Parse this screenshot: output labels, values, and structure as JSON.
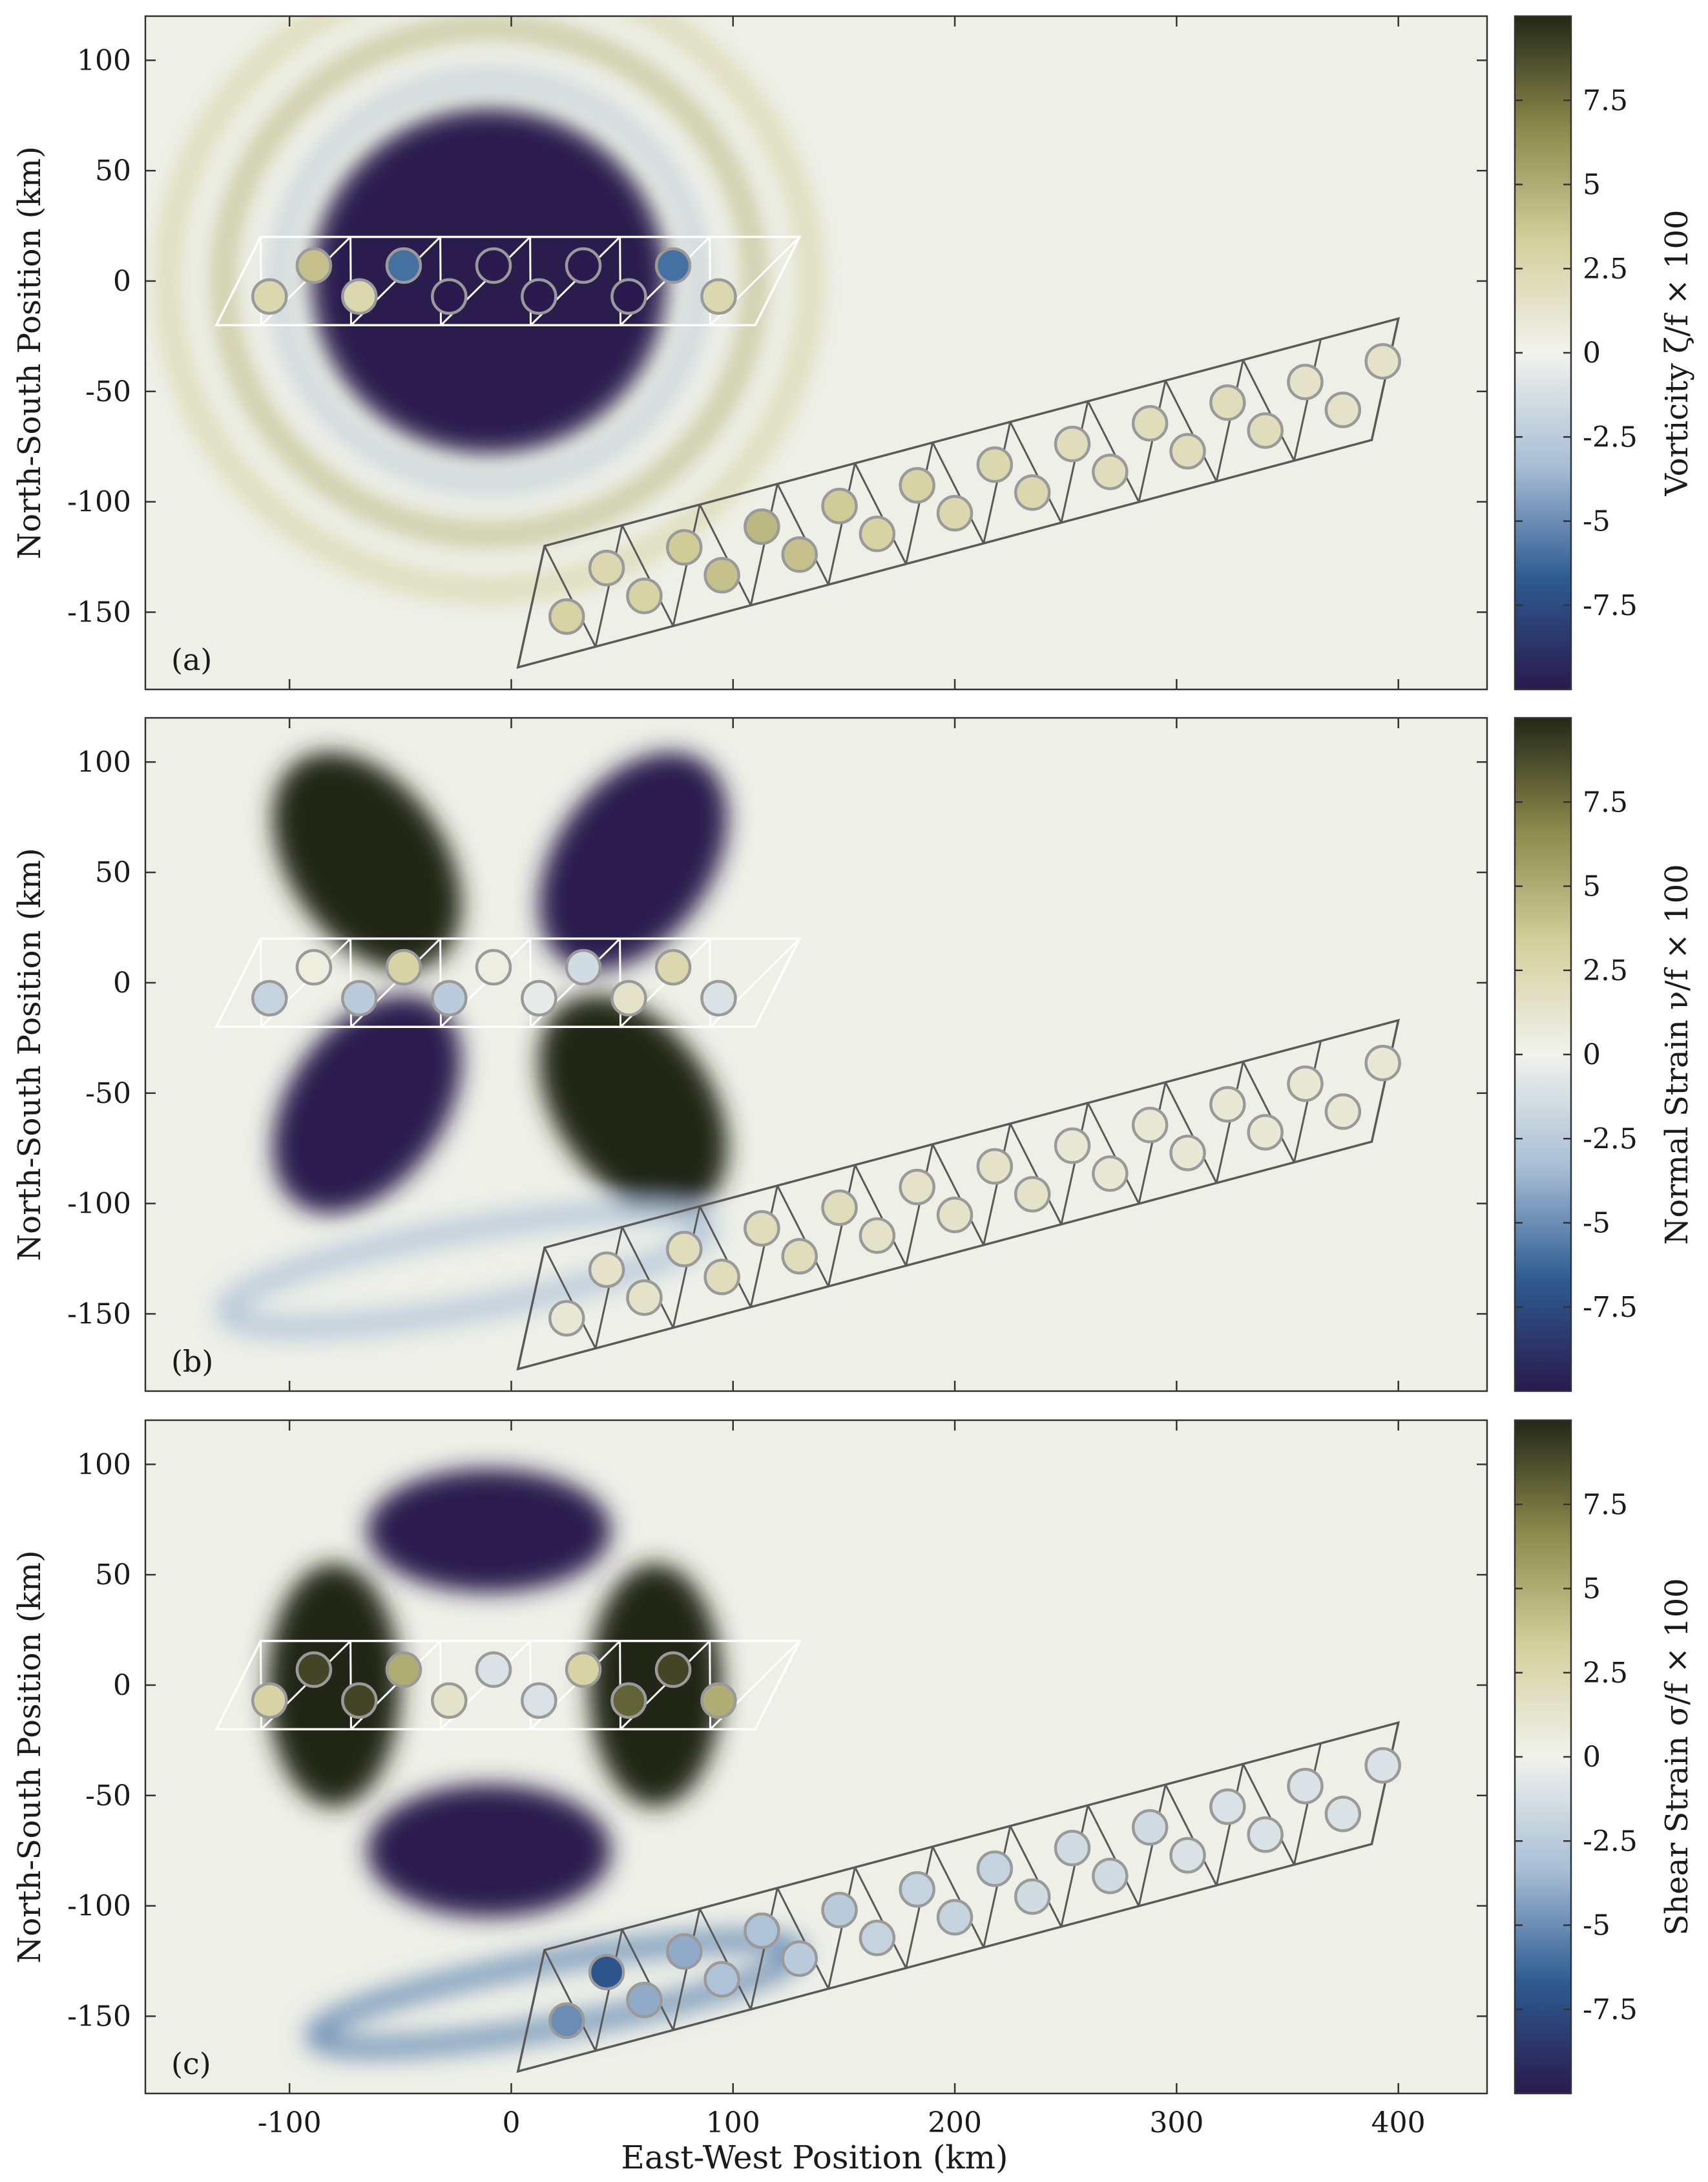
{
  "chart_data": [
    {
      "type": "heatmap",
      "panel_label": "(a)",
      "field": "vorticity",
      "colorbar_label": "Vorticity ζ/f × 100",
      "colorbar_range": [
        -10,
        10
      ],
      "colorbar_ticks": [
        "7.5",
        "5",
        "2.5",
        "0",
        "-2.5",
        "-5",
        "-7.5"
      ],
      "colorbar_tick_values": [
        7.5,
        5,
        2.5,
        0,
        -2.5,
        -5,
        -7.5
      ],
      "ylabel": "North-South Position (km)",
      "xlim": [
        -165,
        440
      ],
      "ylim": [
        -185,
        120
      ],
      "yticks": [
        "100",
        "50",
        "0",
        "-50",
        "-100",
        "-150"
      ],
      "ytick_values": [
        100,
        50,
        0,
        -50,
        -100,
        -150
      ],
      "xtick_values": [
        -100,
        0,
        100,
        200,
        300,
        400
      ],
      "array_outline": "white",
      "array_circle_values": [
        2.5,
        4,
        2.5,
        -6,
        -10,
        -10,
        -10,
        -10,
        -10,
        -6,
        2.5,
        3,
        2.5,
        3,
        3.5,
        4,
        4.5,
        4,
        3.5,
        3,
        3,
        2.5,
        2.5,
        2.5,
        2,
        2,
        2,
        2,
        2,
        2,
        1.5,
        1.5,
        1.5
      ]
    },
    {
      "type": "heatmap",
      "panel_label": "(b)",
      "field": "normal strain",
      "colorbar_label": "Normal Strain ν/f × 100",
      "colorbar_range": [
        -10,
        10
      ],
      "colorbar_ticks": [
        "7.5",
        "5",
        "2.5",
        "0",
        "-2.5",
        "-5",
        "-7.5"
      ],
      "colorbar_tick_values": [
        7.5,
        5,
        2.5,
        0,
        -2.5,
        -5,
        -7.5
      ],
      "ylabel": "North-South Position (km)",
      "xlim": [
        -165,
        440
      ],
      "ylim": [
        -185,
        120
      ],
      "yticks": [
        "100",
        "50",
        "0",
        "-50",
        "-100",
        "-150"
      ],
      "ytick_values": [
        100,
        50,
        0,
        -50,
        -100,
        -150
      ],
      "xtick_values": [
        -100,
        0,
        100,
        200,
        300,
        400
      ],
      "array_outline": "white",
      "array_circle_values": [
        -2,
        0.5,
        -2.5,
        3,
        -2.5,
        0.5,
        -0.5,
        -1.5,
        1.5,
        2.5,
        -1,
        1,
        1.5,
        1.5,
        2,
        2,
        2,
        2,
        2,
        1.5,
        1.5,
        1.5,
        1.5,
        1.5,
        1,
        1,
        1,
        1,
        1,
        1,
        1,
        1,
        1
      ]
    },
    {
      "type": "heatmap",
      "panel_label": "(c)",
      "field": "shear strain",
      "colorbar_label": "Shear Strain σ/f × 100",
      "colorbar_range": [
        -10,
        10
      ],
      "colorbar_ticks": [
        "7.5",
        "5",
        "2.5",
        "0",
        "-2.5",
        "-5",
        "-7.5"
      ],
      "colorbar_tick_values": [
        7.5,
        5,
        2.5,
        0,
        -2.5,
        -5,
        -7.5
      ],
      "ylabel": "North-South Position (km)",
      "xlabel": "East-West Position (km)",
      "xlim": [
        -165,
        440
      ],
      "ylim": [
        -185,
        120
      ],
      "yticks": [
        "100",
        "50",
        "0",
        "-50",
        "-100",
        "-150"
      ],
      "ytick_values": [
        100,
        50,
        0,
        -50,
        -100,
        -150
      ],
      "xticks": [
        "-100",
        "0",
        "100",
        "200",
        "300",
        "400"
      ],
      "xtick_values": [
        -100,
        0,
        100,
        200,
        300,
        400
      ],
      "array_outline": "white",
      "array_circle_values": [
        3,
        9,
        9,
        5,
        1.5,
        -1,
        -1,
        3,
        8,
        9,
        5,
        -5,
        -7,
        -4,
        -4,
        -3,
        -3,
        -2.5,
        -2.5,
        -2,
        -2,
        -2,
        -2,
        -1.5,
        -1.5,
        -1.5,
        -1.5,
        -1,
        -1,
        -1,
        -1,
        -1,
        -1
      ]
    }
  ],
  "colors": {
    "colormap": [
      "#2a1a4d",
      "#2e5c92",
      "#a8bed6",
      "#f1f2ec",
      "#d4cf9c",
      "#8c8a4c",
      "#232816"
    ],
    "background": "#eef0e8",
    "frame": "#333333",
    "array_white": "#ffffff",
    "array_gray": "#5a5a5a",
    "circle_stroke": "#9a9a9a"
  }
}
